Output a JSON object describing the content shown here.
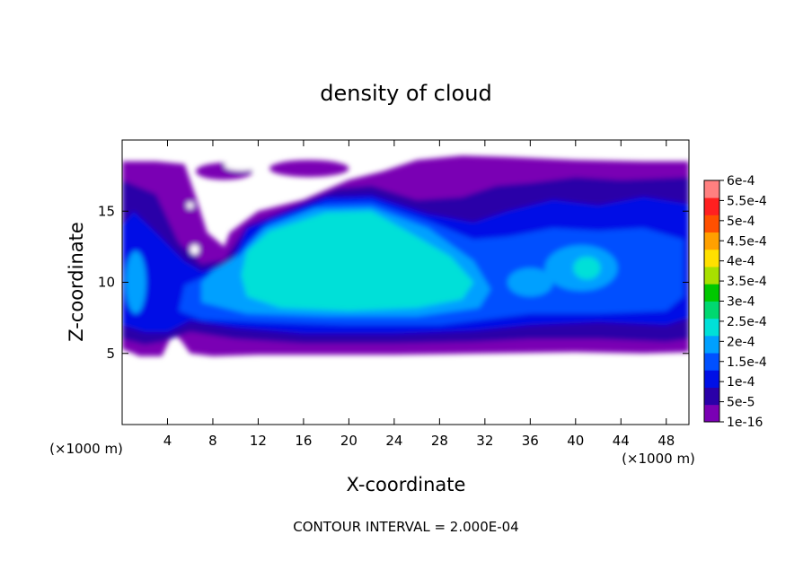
{
  "chart_data": {
    "type": "heatmap",
    "title": "density of cloud",
    "xlabel": "X-coordinate",
    "ylabel": "Z-coordinate",
    "x_unit": "(×1000 m)",
    "y_unit": "(×1000 m)",
    "xlim": [
      0,
      50
    ],
    "ylim": [
      0,
      20
    ],
    "x_ticks": [
      4,
      8,
      12,
      16,
      20,
      24,
      28,
      32,
      36,
      40,
      44,
      48
    ],
    "y_ticks": [
      5,
      10,
      15
    ],
    "colorbar": {
      "labels": [
        "1e-16",
        "5e-5",
        "1e-4",
        "1.5e-4",
        "2e-4",
        "2.5e-4",
        "3e-4",
        "3.5e-4",
        "4e-4",
        "4.5e-4",
        "5e-4",
        "5.5e-4",
        "6e-4"
      ],
      "colors": [
        "#7a00b4",
        "#2a00a8",
        "#0010e6",
        "#0050ff",
        "#00a0ff",
        "#00e0d8",
        "#00d870",
        "#00c800",
        "#a8e000",
        "#ffe000",
        "#ffa000",
        "#ff5000",
        "#ff2020",
        "#ff8080"
      ]
    },
    "field": {
      "cloud_base": 5,
      "cloud_top": 18.5,
      "core_x_range": [
        9,
        32
      ],
      "core_z_range": [
        7,
        16.5
      ],
      "core_peak_value": "2e-4",
      "secondary_core_x": 41,
      "secondary_core_z": 11
    },
    "footnote": "CONTOUR INTERVAL = 2.000E-04"
  }
}
